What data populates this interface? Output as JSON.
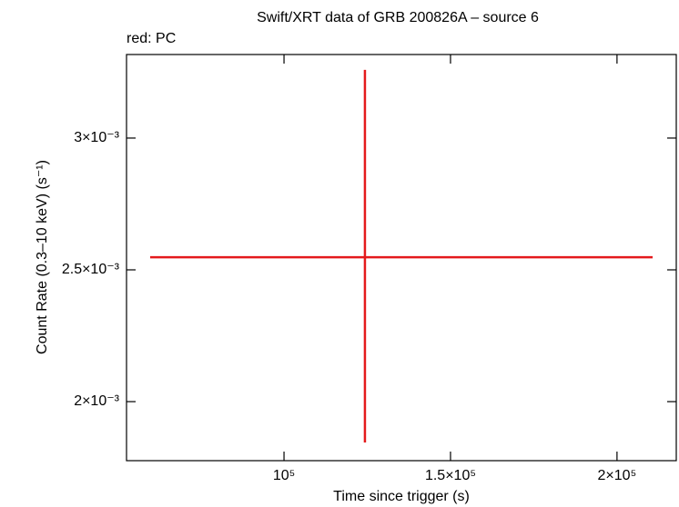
{
  "chart_data": {
    "type": "scatter",
    "title": "Swift/XRT data of GRB 200826A – source 6",
    "subtitle": "red: PC",
    "x_label": "Time since trigger (s)",
    "y_label": "Count Rate (0.3–10 keV) (s⁻¹)",
    "xlim": [
      52700,
      217800
    ],
    "ylim": [
      0.001776,
      0.003317
    ],
    "xticks": [
      {
        "value": 100000,
        "label": "10⁵"
      },
      {
        "value": 150000,
        "label": "1.5×10⁵"
      },
      {
        "value": 200000,
        "label": "2×10⁵"
      }
    ],
    "yticks": [
      {
        "value": 0.002,
        "label": "2×10⁻³"
      },
      {
        "value": 0.0025,
        "label": "2.5×10⁻³"
      },
      {
        "value": 0.003,
        "label": "3×10⁻³"
      }
    ],
    "series": [
      {
        "color": "#e41a1c",
        "x": [
          124300
        ],
        "xerr_minus": [
          64500
        ],
        "xerr_plus": [
          86400
        ],
        "values": [
          0.002548
        ],
        "yerr_minus": [
          0.000703
        ],
        "yerr_plus": [
          0.000711
        ]
      }
    ]
  }
}
